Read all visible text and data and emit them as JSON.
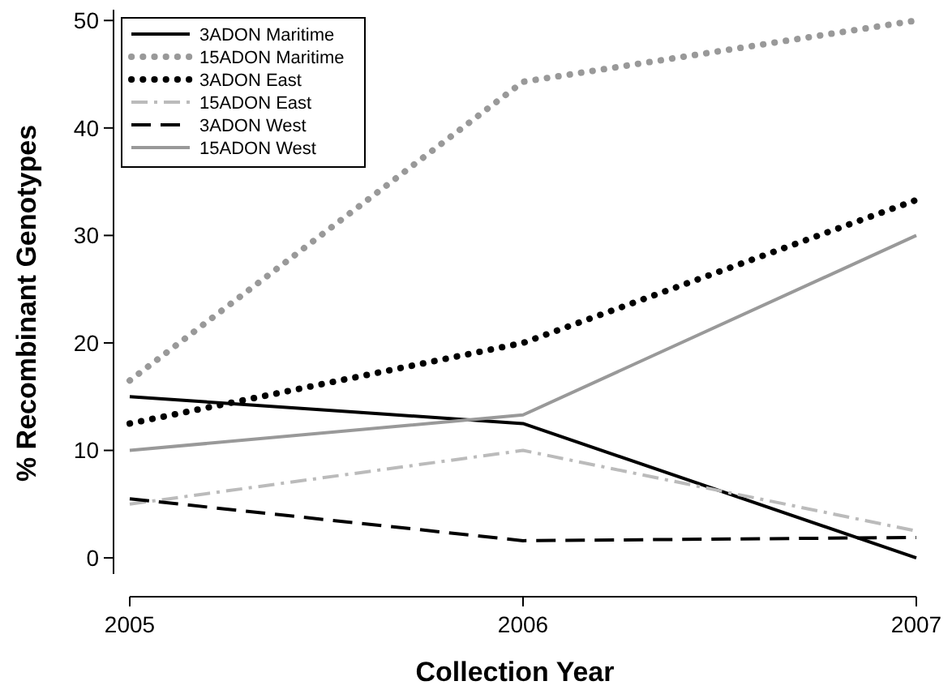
{
  "chart_data": {
    "type": "line",
    "xlabel": "Collection Year",
    "ylabel": "% Recombinant Genotypes",
    "x": [
      2005,
      2006,
      2007
    ],
    "xlim": [
      2005,
      2007
    ],
    "xticks": [
      2005,
      2006,
      2007
    ],
    "ylim": [
      -1.5,
      51
    ],
    "yticks": [
      0,
      10,
      20,
      30,
      40,
      50
    ],
    "grid": false,
    "legend": "top left",
    "marker": "none",
    "series": [
      {
        "name": "3ADON Maritime",
        "color": "#000000",
        "line_style": "solid",
        "values": [
          15,
          12.5,
          0
        ]
      },
      {
        "name": "15ADON Maritime",
        "color": "#999999",
        "line_style": "dotted",
        "values": [
          16.5,
          44.3,
          50
        ]
      },
      {
        "name": "3ADON East",
        "color": "#000000",
        "line_style": "dotted",
        "values": [
          12.5,
          20,
          33.3
        ]
      },
      {
        "name": "15ADON East",
        "color": "#bbbbbb",
        "line_style": "dashdot",
        "values": [
          5,
          10,
          2.5
        ]
      },
      {
        "name": "3ADON West",
        "color": "#000000",
        "line_style": "dashed",
        "values": [
          5.5,
          1.6,
          1.9
        ]
      },
      {
        "name": "15ADON West",
        "color": "#999999",
        "line_style": "solid",
        "values": [
          10,
          13.3,
          30
        ]
      }
    ]
  }
}
